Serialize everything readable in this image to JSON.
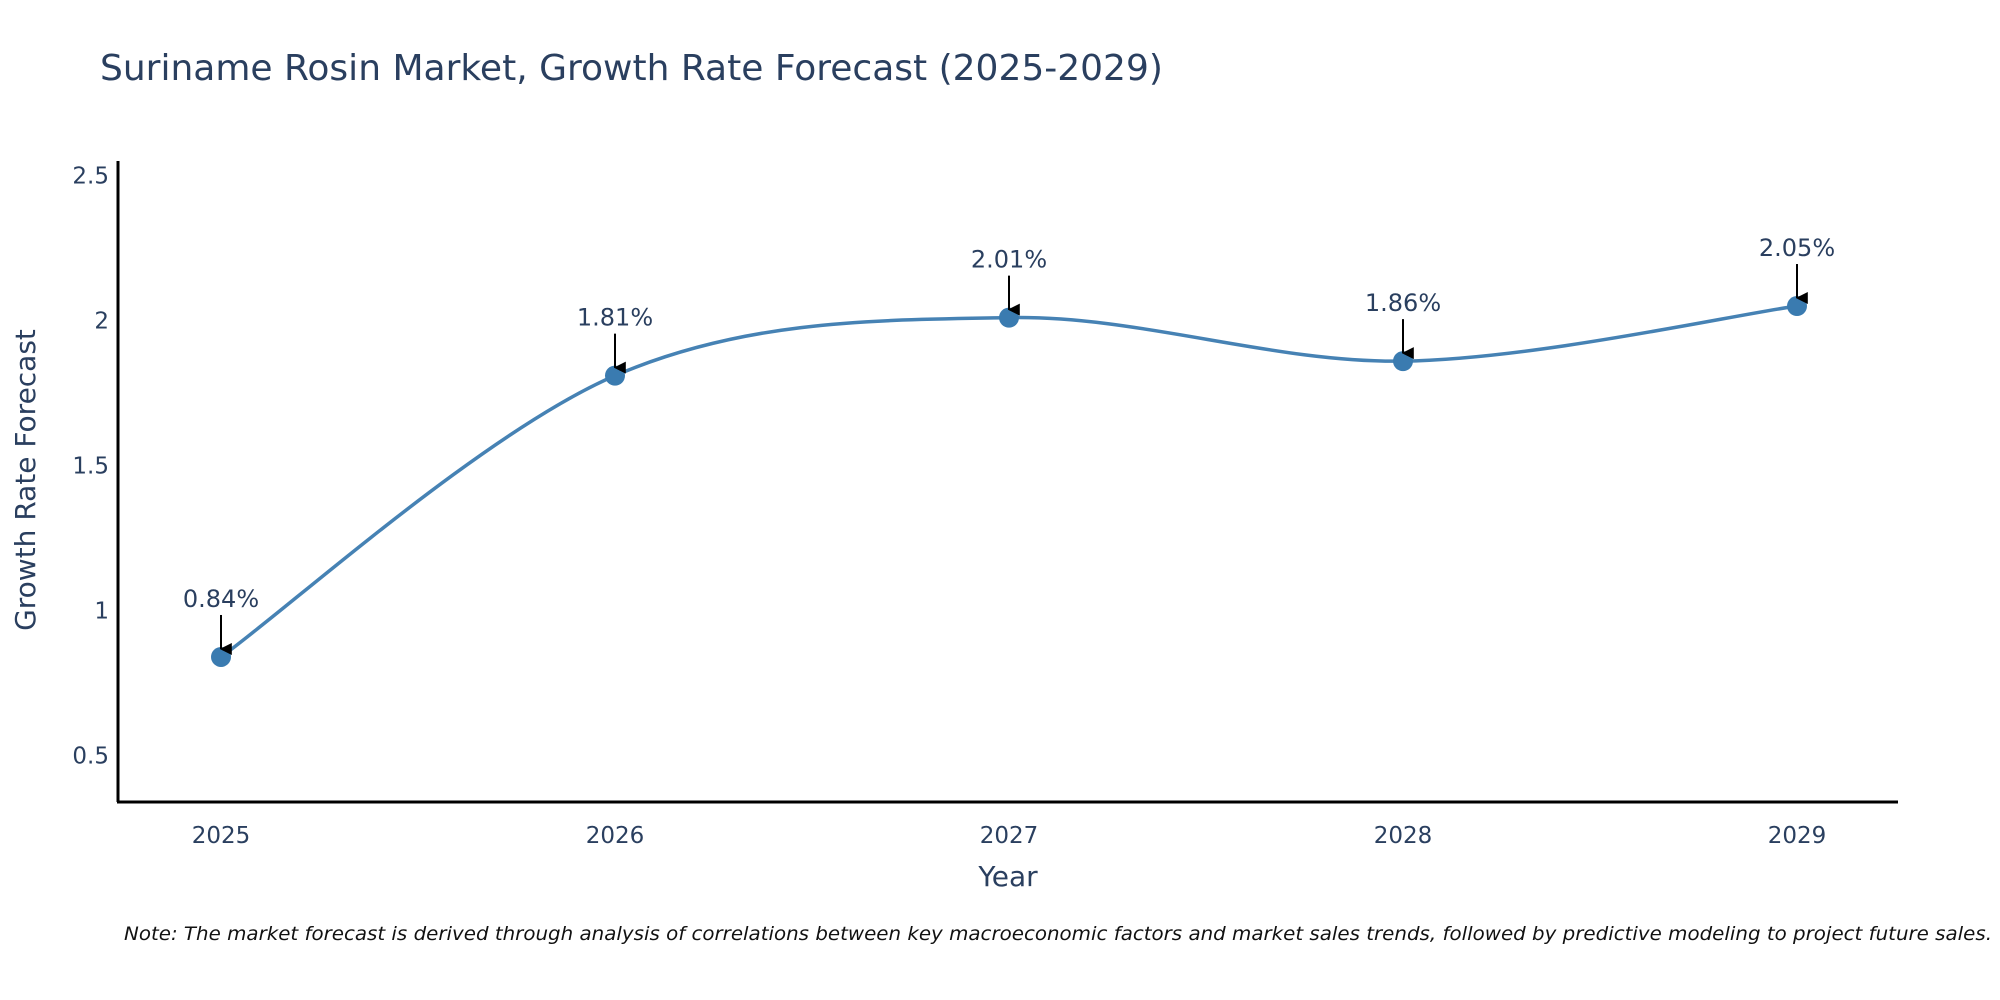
{
  "chart_data": {
    "type": "line",
    "title": "Suriname Rosin Market, Growth Rate Forecast (2025-2029)",
    "xlabel": "Year",
    "ylabel": "Growth Rate Forecast",
    "categories": [
      "2025",
      "2026",
      "2027",
      "2028",
      "2029"
    ],
    "values": [
      0.84,
      1.81,
      2.01,
      1.86,
      2.05
    ],
    "data_labels": [
      "0.84%",
      "1.81%",
      "2.01%",
      "1.86%",
      "2.05%"
    ],
    "y_ticks": [
      0.5,
      1,
      1.5,
      2,
      2.5
    ],
    "y_tick_labels": [
      "0.5",
      "1",
      "1.5",
      "2",
      "2.5"
    ],
    "ylim": [
      0.34,
      2.55
    ],
    "line_shape": "spline",
    "grid": false,
    "legend": "none",
    "note": "Note: The market forecast is derived through analysis of correlations between key macroeconomic factors and market sales trends, followed by predictive modeling to project future sales.",
    "colors": {
      "line": "#4682b4",
      "marker": "#3a7bb0",
      "text": "#2a3f5f",
      "axis": "#000000"
    }
  }
}
